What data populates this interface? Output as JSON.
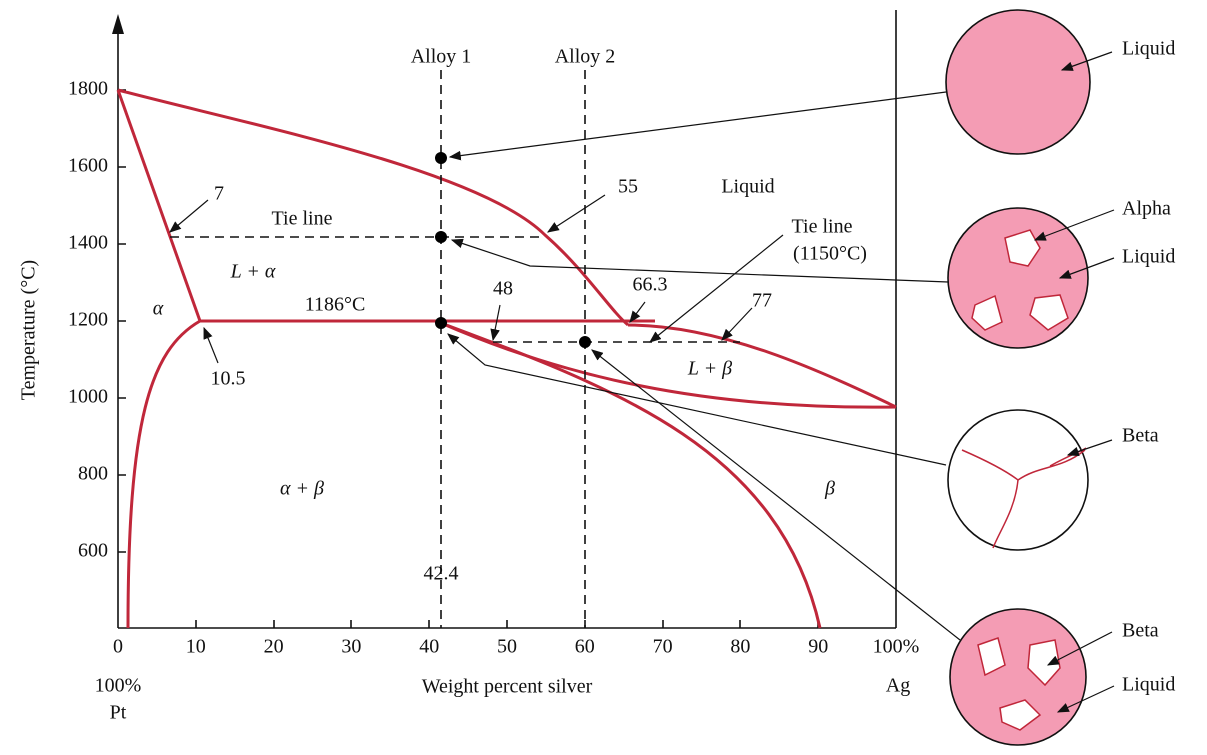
{
  "axes": {
    "y_label": "Temperature (°C)",
    "x_label": "Weight percent silver",
    "y_ticks": [
      "1800",
      "1600",
      "1400",
      "1200",
      "1000",
      "800",
      "600"
    ],
    "x_ticks": [
      "0",
      "10",
      "20",
      "30",
      "40",
      "50",
      "60",
      "70",
      "80",
      "90",
      "100%"
    ],
    "x_left_end": [
      "100%",
      "Pt"
    ],
    "x_right_end": "Ag"
  },
  "alloys": [
    "Alloy 1",
    "Alloy 2"
  ],
  "annotations": {
    "composition_7": "7",
    "tie_line": "Tie line",
    "composition_55": "55",
    "liquid": "Liquid",
    "tie_line_2": "Tie line",
    "tie_line_2_temp": "(1150°C)",
    "composition_66_3": "66.3",
    "composition_77": "77",
    "composition_48": "48",
    "l_alpha": "L + α",
    "alpha": "α",
    "peritectic": "1186°C",
    "composition_10_5": "10.5",
    "l_beta": "L + β",
    "alpha_beta": "α + β",
    "beta": "β",
    "alloy1_composition": "42.4"
  },
  "micrographs": [
    {
      "labels": [
        "Liquid"
      ]
    },
    {
      "labels": [
        "Alpha",
        "Liquid"
      ]
    },
    {
      "labels": [
        "Beta"
      ]
    },
    {
      "labels": [
        "Beta",
        "Liquid"
      ]
    }
  ]
}
